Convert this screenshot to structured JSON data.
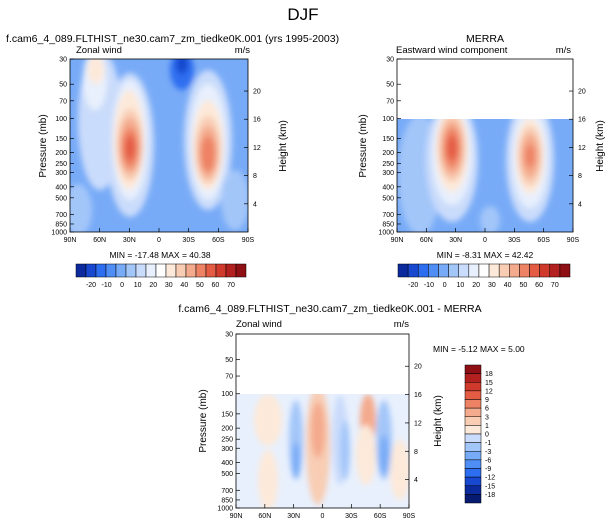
{
  "figure_title": "DJF",
  "panels": [
    {
      "title": "f.cam6_4_089.FLTHIST_ne30.cam7_zm_tiedke0K.001 (yrs 1995-2003)",
      "left_string": "Zonal wind",
      "right_string": "m/s",
      "ylabel": "Pressure (mb)",
      "ylabel_right": "Height (km)",
      "stats": "MIN = -17.48  MAX = 40.38"
    },
    {
      "title": "MERRA",
      "left_string": "Eastward wind component",
      "right_string": "m/s",
      "ylabel": "Pressure (mb)",
      "ylabel_right": "Height (km)",
      "stats": "MIN = -8.31  MAX = 42.42"
    },
    {
      "title": "f.cam6_4_089.FLTHIST_ne30.cam7_zm_tiedke0K.001 - MERRA",
      "left_string": "Zonal wind",
      "right_string": "m/s",
      "ylabel": "Pressure (mb)",
      "ylabel_right": "Height (km)",
      "stats": "MIN = -5.12  MAX =  5.00"
    }
  ],
  "chart_data": [
    {
      "type": "heatmap",
      "panel": "model",
      "variable": "Zonal wind",
      "units": "m/s",
      "x_ticks": [
        "90N",
        "60N",
        "30N",
        "0",
        "30S",
        "60S",
        "90S"
      ],
      "y_ticks_pressure": [
        "30",
        "50",
        "70",
        "100",
        "150",
        "200",
        "250",
        "300",
        "400",
        "500",
        "700",
        "850",
        "1000"
      ],
      "y_ticks_height": [
        "4",
        "8",
        "12",
        "16",
        "20"
      ],
      "ylim_pressure": [
        1000,
        30
      ],
      "min": -17.48,
      "max": 40.38,
      "jet_maxima": [
        {
          "lat": 30,
          "pressure": 200,
          "value": 40.38
        },
        {
          "lat": -50,
          "pressure": 250,
          "value": 32
        }
      ]
    },
    {
      "type": "heatmap",
      "panel": "obs",
      "variable": "Eastward wind component",
      "units": "m/s",
      "x_ticks": [
        "90N",
        "60N",
        "30N",
        "0",
        "30S",
        "60S",
        "90S"
      ],
      "y_ticks_pressure": [
        "30",
        "50",
        "70",
        "100",
        "150",
        "200",
        "250",
        "300",
        "400",
        "500",
        "700",
        "850",
        "1000"
      ],
      "y_ticks_height": [
        "4",
        "8",
        "12",
        "16",
        "20"
      ],
      "data_top_pressure": 100,
      "min": -8.31,
      "max": 42.42,
      "jet_maxima": [
        {
          "lat": 30,
          "pressure": 200,
          "value": 42.42
        },
        {
          "lat": -45,
          "pressure": 250,
          "value": 33
        }
      ]
    },
    {
      "type": "heatmap",
      "panel": "difference",
      "variable": "Zonal wind",
      "units": "m/s",
      "x_ticks": [
        "90N",
        "60N",
        "30N",
        "0",
        "30S",
        "60S",
        "90S"
      ],
      "y_ticks_pressure": [
        "30",
        "50",
        "70",
        "100",
        "150",
        "200",
        "250",
        "300",
        "400",
        "500",
        "700",
        "850",
        "1000"
      ],
      "y_ticks_height": [
        "4",
        "8",
        "12",
        "16",
        "20"
      ],
      "data_top_pressure": 100,
      "min": -5.12,
      "max": 5.0
    }
  ],
  "colorbar_main": {
    "labels": [
      "-20",
      "-10",
      "0",
      "10",
      "20",
      "30",
      "40",
      "50",
      "60",
      "70"
    ],
    "colors": [
      "#0a2a9e",
      "#1748cf",
      "#2d6ef0",
      "#4f8ef5",
      "#78abf7",
      "#a3c6f9",
      "#cadcfb",
      "#e8f0fd",
      "#ffffff",
      "#fde9d9",
      "#f8cdb4",
      "#f4aa8d",
      "#ee8264",
      "#e45c44",
      "#cf3a2c",
      "#b2201f",
      "#8e0f14"
    ]
  },
  "colorbar_diff": {
    "labels": [
      "18",
      "15",
      "12",
      "9",
      "6",
      "3",
      "1",
      "0",
      "-1",
      "-3",
      "-6",
      "-9",
      "-12",
      "-15",
      "-18"
    ],
    "colors": [
      "#8e0f14",
      "#b2201f",
      "#cf3a2c",
      "#e45c44",
      "#ee8264",
      "#f4aa8d",
      "#f8cdb4",
      "#fde9d9",
      "#cadcfb",
      "#a3c6f9",
      "#78abf7",
      "#4f8ef5",
      "#2d6ef0",
      "#1748cf",
      "#0a2a9e",
      "#061a70"
    ]
  }
}
